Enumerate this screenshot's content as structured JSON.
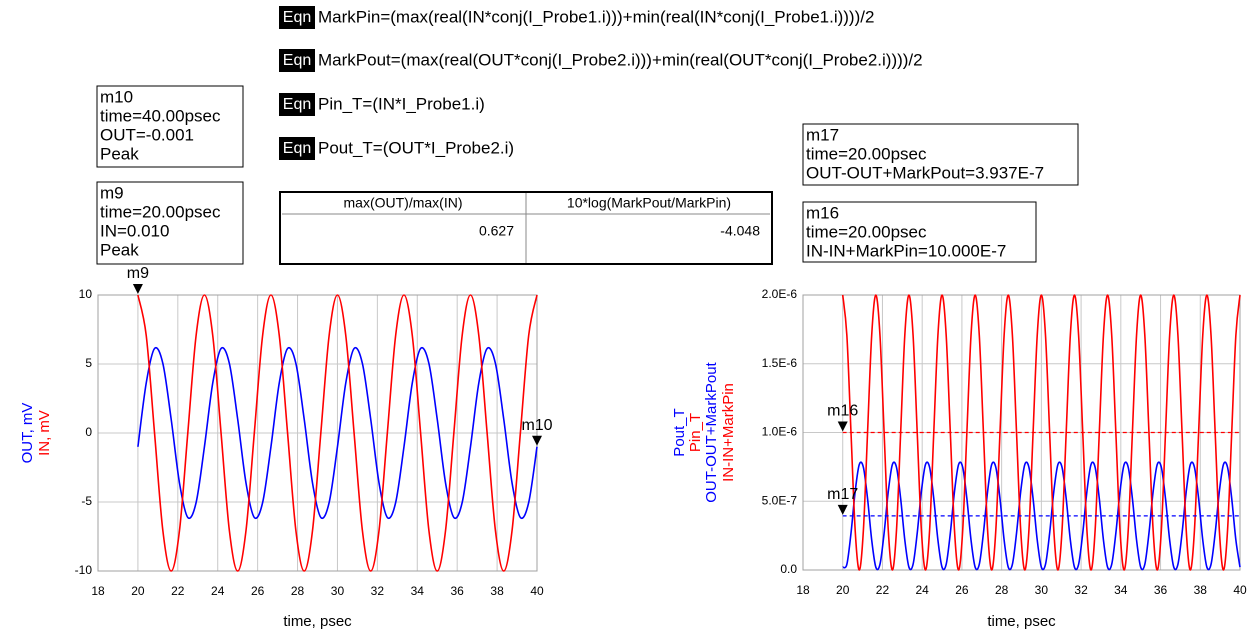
{
  "equations": [
    {
      "tag": "Eqn",
      "text": "MarkPin=(max(real(IN*conj(I_Probe1.i)))+min(real(IN*conj(I_Probe1.i))))/2"
    },
    {
      "tag": "Eqn",
      "text": "MarkPout=(max(real(OUT*conj(I_Probe2.i)))+min(real(OUT*conj(I_Probe2.i))))/2"
    },
    {
      "tag": "Eqn",
      "text": "Pin_T=(IN*I_Probe1.i)"
    },
    {
      "tag": "Eqn",
      "text": "Pout_T=(OUT*I_Probe2.i)"
    }
  ],
  "table": {
    "header": [
      "max(OUT)/max(IN)",
      "10*log(MarkPout/MarkPin)"
    ],
    "rows": [
      [
        0.627,
        -4.048
      ]
    ]
  },
  "marker_readouts": [
    {
      "lines": [
        "m10",
        "time=40.00psec",
        "OUT=-0.001",
        "Peak"
      ]
    },
    {
      "lines": [
        "m9",
        "time=20.00psec",
        "IN=0.010",
        "Peak"
      ]
    },
    {
      "lines": [
        "m17",
        "time=20.00psec",
        "OUT-OUT+MarkPout=3.937E-7"
      ]
    },
    {
      "lines": [
        "m16",
        "time=20.00psec",
        "IN-IN+MarkPin=10.000E-7"
      ]
    }
  ],
  "chart_data": [
    {
      "type": "line",
      "xlabel": "time, psec",
      "grid": true,
      "xlim": [
        18,
        40
      ],
      "xticks": [
        18,
        20,
        22,
        24,
        26,
        28,
        30,
        32,
        34,
        36,
        38,
        40
      ],
      "ylim": [
        -10,
        10
      ],
      "yticks": [
        -10,
        -5,
        0,
        5,
        10
      ],
      "x": [
        20,
        20.4167,
        20.8333,
        21.25,
        21.6667,
        22.0833,
        22.5,
        22.9167,
        23.3333,
        23.75,
        24.1667,
        24.5833,
        25,
        25.4167,
        25.8333,
        26.25,
        26.6667,
        27.0833,
        27.5,
        27.9167,
        28.3333,
        28.75,
        29.1667,
        29.5833,
        30,
        30.4167,
        30.8333,
        31.25,
        31.6667,
        32.0833,
        32.5,
        32.9167,
        33.3333,
        33.75,
        34.1667,
        34.5833,
        35,
        35.4167,
        35.8333,
        36.25,
        36.6667,
        37.0833,
        37.5,
        37.9167,
        38.3333,
        38.75,
        39.1667,
        39.5833,
        40
      ],
      "series": [
        {
          "name": "OUT, mV",
          "color": "#0000ff",
          "values": [
            -1,
            3.62,
            6.12,
            5.04,
            1,
            -3.62,
            -6.12,
            -5.04,
            -1,
            3.62,
            6.12,
            5.04,
            1,
            -3.62,
            -6.12,
            -5.04,
            -1,
            3.62,
            6.12,
            5.04,
            1,
            -3.62,
            -6.12,
            -5.04,
            -1,
            3.62,
            6.12,
            5.04,
            1,
            -3.62,
            -6.12,
            -5.04,
            -1,
            3.62,
            6.12,
            5.04,
            1,
            -3.62,
            -6.12,
            -5.04,
            -1,
            3.62,
            6.12,
            5.04,
            1,
            -3.62,
            -6.12,
            -5.04,
            -1
          ]
        },
        {
          "name": "IN, mV",
          "color": "#ff0000",
          "values": [
            10,
            7.071,
            0,
            -7.071,
            -10,
            -7.071,
            0,
            7.071,
            10,
            7.071,
            0,
            -7.071,
            -10,
            -7.071,
            0,
            7.071,
            10,
            7.071,
            0,
            -7.071,
            -10,
            -7.071,
            0,
            7.071,
            10,
            7.071,
            0,
            -7.071,
            -10,
            -7.071,
            0,
            7.071,
            10,
            7.071,
            0,
            -7.071,
            -10,
            -7.071,
            0,
            7.071,
            10,
            7.071,
            0,
            -7.071,
            -10,
            -7.071,
            0,
            7.071,
            10
          ]
        }
      ],
      "markers": [
        {
          "name": "m9",
          "x": 20,
          "y": 10
        },
        {
          "name": "m10",
          "x": 40,
          "y": -1
        }
      ]
    },
    {
      "type": "line",
      "xlabel": "time, psec",
      "grid": true,
      "xlim": [
        18,
        40
      ],
      "xticks": [
        18,
        20,
        22,
        24,
        26,
        28,
        30,
        32,
        34,
        36,
        38,
        40
      ],
      "ylim": [
        0,
        2e-06
      ],
      "yticks": [
        {
          "value": 0,
          "label": "0.0"
        },
        {
          "value": 5e-07,
          "label": "5.0E-7"
        },
        {
          "value": 1e-06,
          "label": "1.0E-6"
        },
        {
          "value": 1.5e-06,
          "label": "1.5E-6"
        },
        {
          "value": 2e-06,
          "label": "2.0E-6"
        }
      ],
      "x": [
        20,
        20.2083,
        20.4167,
        20.625,
        20.8333,
        21.0417,
        21.25,
        21.4583,
        21.6667,
        21.875,
        22.0833,
        22.2917,
        22.5,
        22.7083,
        22.9167,
        23.125,
        23.3333,
        23.5417,
        23.75,
        23.9583,
        24.1667,
        24.375,
        24.5833,
        24.7917,
        25,
        25.2083,
        25.4167,
        25.625,
        25.8333,
        26.0417,
        26.25,
        26.4583,
        26.6667,
        26.875,
        27.0833,
        27.2917,
        27.5,
        27.7083,
        27.9167,
        28.125,
        28.3333,
        28.5417,
        28.75,
        28.9583,
        29.1667,
        29.375,
        29.5833,
        29.7917,
        30,
        30.2083,
        30.4167,
        30.625,
        30.8333,
        31.0417,
        31.25,
        31.4583,
        31.6667,
        31.875,
        32.0833,
        32.2917,
        32.5,
        32.7083,
        32.9167,
        33.125,
        33.3333,
        33.5417,
        33.75,
        33.9583,
        34.1667,
        34.375,
        34.5833,
        34.7917,
        35,
        35.2083,
        35.4167,
        35.625,
        35.8333,
        36.0417,
        36.25,
        36.4583,
        36.6667,
        36.875,
        37.0833,
        37.2917,
        37.5,
        37.7083,
        37.9167,
        38.125,
        38.3333,
        38.5417,
        38.75,
        38.9583,
        39.1667,
        39.375,
        39.5833,
        39.7917,
        40
      ],
      "series": [
        {
          "name": "Pout_T",
          "color": "#0000ff",
          "values": [
            2.05e-08,
            4.12e-08,
            2.683e-07,
            5.689e-07,
            7.669e-07,
            7.462e-07,
            5.191e-07,
            2.185e-07,
            2.05e-08,
            4.12e-08,
            2.683e-07,
            5.689e-07,
            7.669e-07,
            7.462e-07,
            5.191e-07,
            2.185e-07,
            2.05e-08,
            4.12e-08,
            2.683e-07,
            5.689e-07,
            7.669e-07,
            7.462e-07,
            5.191e-07,
            2.185e-07,
            2.05e-08,
            4.12e-08,
            2.683e-07,
            5.689e-07,
            7.669e-07,
            7.462e-07,
            5.191e-07,
            2.185e-07,
            2.05e-08,
            4.12e-08,
            2.683e-07,
            5.689e-07,
            7.669e-07,
            7.462e-07,
            5.191e-07,
            2.185e-07,
            2.05e-08,
            4.12e-08,
            2.683e-07,
            5.689e-07,
            7.669e-07,
            7.462e-07,
            5.191e-07,
            2.185e-07,
            2.05e-08,
            4.12e-08,
            2.683e-07,
            5.689e-07,
            7.669e-07,
            7.462e-07,
            5.191e-07,
            2.185e-07,
            2.05e-08,
            4.12e-08,
            2.683e-07,
            5.689e-07,
            7.669e-07,
            7.462e-07,
            5.191e-07,
            2.185e-07,
            2.05e-08,
            4.12e-08,
            2.683e-07,
            5.689e-07,
            7.669e-07,
            7.462e-07,
            5.191e-07,
            2.185e-07,
            2.05e-08,
            4.12e-08,
            2.683e-07,
            5.689e-07,
            7.669e-07,
            7.462e-07,
            5.191e-07,
            2.185e-07,
            2.05e-08,
            4.12e-08,
            2.683e-07,
            5.689e-07,
            7.669e-07,
            7.462e-07,
            5.191e-07,
            2.185e-07,
            2.05e-08,
            4.12e-08,
            2.683e-07,
            5.689e-07,
            7.669e-07,
            7.462e-07,
            5.191e-07,
            2.185e-07,
            2.05e-08
          ]
        },
        {
          "name": "Pin_T",
          "color": "#ff0000",
          "values": [
            2e-06,
            1.707e-06,
            1e-06,
            2.93e-07,
            0,
            2.93e-07,
            1e-06,
            1.707e-06,
            2e-06,
            1.707e-06,
            1e-06,
            2.93e-07,
            0,
            2.93e-07,
            1e-06,
            1.707e-06,
            2e-06,
            1.707e-06,
            1e-06,
            2.93e-07,
            0,
            2.93e-07,
            1e-06,
            1.707e-06,
            2e-06,
            1.707e-06,
            1e-06,
            2.93e-07,
            0,
            2.93e-07,
            1e-06,
            1.707e-06,
            2e-06,
            1.707e-06,
            1e-06,
            2.93e-07,
            0,
            2.93e-07,
            1e-06,
            1.707e-06,
            2e-06,
            1.707e-06,
            1e-06,
            2.93e-07,
            0,
            2.93e-07,
            1e-06,
            1.707e-06,
            2e-06,
            1.707e-06,
            1e-06,
            2.93e-07,
            0,
            2.93e-07,
            1e-06,
            1.707e-06,
            2e-06,
            1.707e-06,
            1e-06,
            2.93e-07,
            0,
            2.93e-07,
            1e-06,
            1.707e-06,
            2e-06,
            1.707e-06,
            1e-06,
            2.93e-07,
            0,
            2.93e-07,
            1e-06,
            1.707e-06,
            2e-06,
            1.707e-06,
            1e-06,
            2.93e-07,
            0,
            2.93e-07,
            1e-06,
            1.707e-06,
            2e-06,
            1.707e-06,
            1e-06,
            2.93e-07,
            0,
            2.93e-07,
            1e-06,
            1.707e-06,
            2e-06,
            1.707e-06,
            1e-06,
            2.93e-07,
            0,
            2.93e-07,
            1e-06,
            1.707e-06,
            2e-06
          ]
        },
        {
          "name": "OUT-OUT+MarkPout",
          "color": "#0000ff",
          "dash": true,
          "x": [
            20,
            40
          ],
          "values": [
            3.937e-07,
            3.937e-07
          ]
        },
        {
          "name": "IN-IN+MarkPin",
          "color": "#ff0000",
          "dash": true,
          "x": [
            20,
            40
          ],
          "values": [
            1e-06,
            1e-06
          ]
        }
      ],
      "markers": [
        {
          "name": "m16",
          "x": 20,
          "y": 1e-06
        },
        {
          "name": "m17",
          "x": 20,
          "y": 3.937e-07
        }
      ]
    }
  ]
}
